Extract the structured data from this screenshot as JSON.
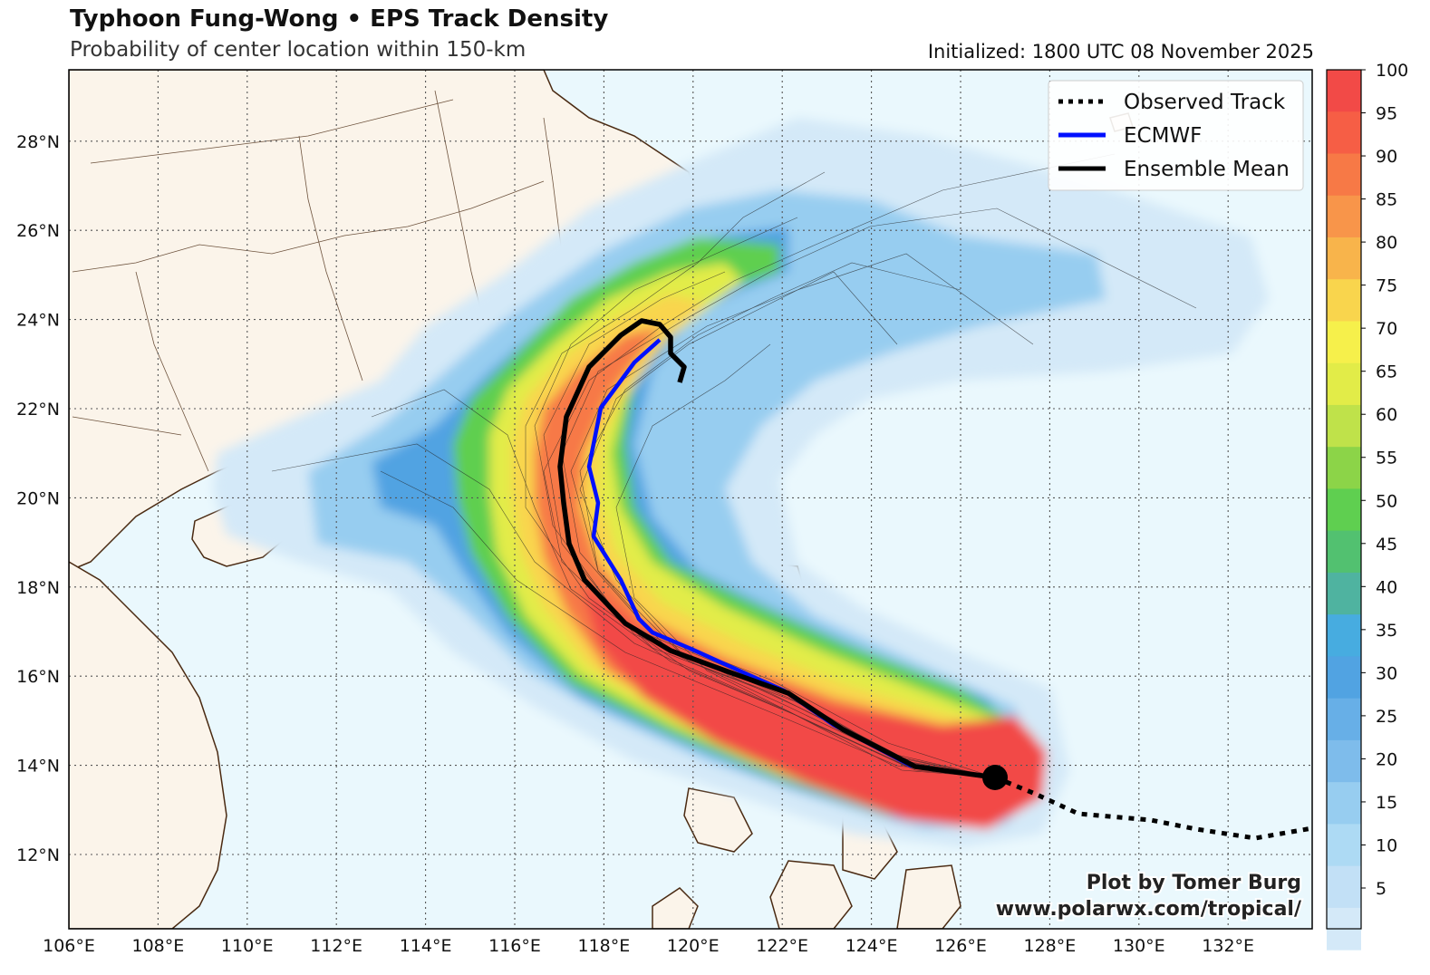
{
  "title": "Typhoon Fung-Wong • EPS Track Density",
  "subtitle": "Probability of center location within 150-km",
  "initialized": "Initialized: 1800 UTC 08 November 2025",
  "credit_line1": "Plot by Tomer Burg",
  "credit_line2": "www.polarwx.com/tropical/",
  "legend": [
    {
      "label": "Observed Track",
      "style": "dotted",
      "color": "#000000"
    },
    {
      "label": "ECMWF",
      "style": "solid",
      "color": "#0010ff"
    },
    {
      "label": "Ensemble Mean",
      "style": "solid",
      "color": "#000000"
    }
  ],
  "lon_ticks": [
    "106°E",
    "108°E",
    "110°E",
    "112°E",
    "114°E",
    "116°E",
    "118°E",
    "120°E",
    "122°E",
    "124°E",
    "126°E",
    "128°E",
    "130°E",
    "132°E"
  ],
  "lat_ticks": [
    "12°N",
    "14°N",
    "16°N",
    "18°N",
    "20°N",
    "22°N",
    "24°N",
    "26°N",
    "28°N"
  ],
  "colorbar": {
    "ticks": [
      "5",
      "10",
      "15",
      "20",
      "25",
      "30",
      "35",
      "40",
      "45",
      "50",
      "55",
      "60",
      "65",
      "70",
      "75",
      "80",
      "85",
      "90",
      "95",
      "100"
    ],
    "colors": [
      "#d4e9f8",
      "#c2e0f6",
      "#addaf4",
      "#97cdf0",
      "#7ebceb",
      "#67afe7",
      "#51a3e2",
      "#47ace0",
      "#4fb3a0",
      "#52c170",
      "#5fcf50",
      "#8cd448",
      "#bfe24a",
      "#e2ec48",
      "#f6f04b",
      "#f9d54d",
      "#f8b44b",
      "#f8954a",
      "#f77946",
      "#f65e45",
      "#f24a47"
    ]
  },
  "colors": {
    "ocean": "#eaf8fd",
    "land": "#fbf4ea",
    "coast": "#4a2a12",
    "grid": "#555555"
  }
}
